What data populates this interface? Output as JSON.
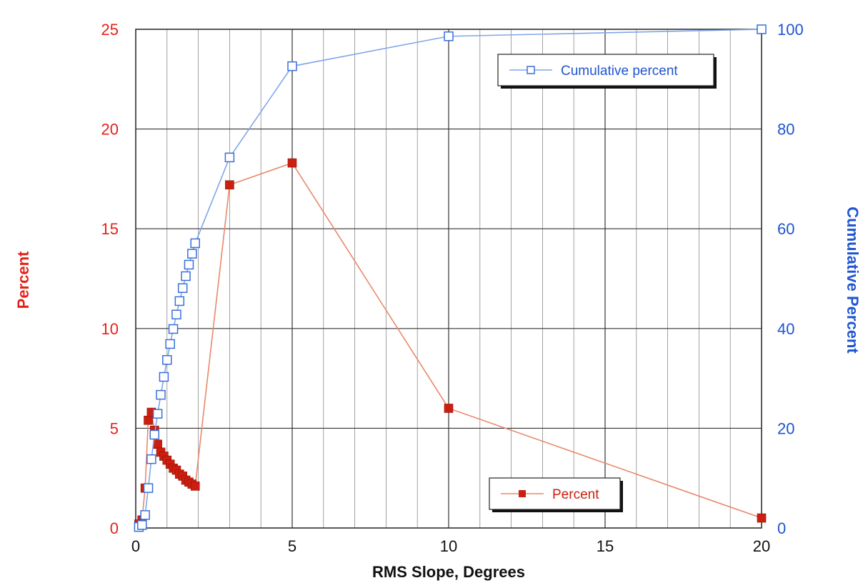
{
  "chart_data": {
    "type": "line",
    "xlabel": "RMS Slope, Degrees",
    "ylabel": "Percent",
    "y2label": "Cumulative Percent",
    "xlim": [
      0,
      20
    ],
    "ylim": [
      0,
      25
    ],
    "y2lim": [
      0,
      100
    ],
    "x_ticks": [
      "0",
      "5",
      "10",
      "15",
      "20"
    ],
    "y_ticks": [
      "0",
      "5",
      "10",
      "15",
      "20",
      "25"
    ],
    "y2_ticks": [
      "0",
      "20",
      "40",
      "60",
      "80",
      "100"
    ],
    "grid": true,
    "minor_x_grid_step": 1,
    "series": [
      {
        "name": "Percent",
        "axis": "left",
        "color": "#cc1f10",
        "line_color": "#e8886a",
        "marker": "filled-square",
        "legend_position": "bottom-right",
        "x": [
          0.1,
          0.2,
          0.3,
          0.4,
          0.5,
          0.6,
          0.7,
          0.8,
          0.9,
          1.0,
          1.1,
          1.2,
          1.3,
          1.4,
          1.5,
          1.6,
          1.7,
          1.8,
          1.9,
          3,
          5,
          10,
          20
        ],
        "y": [
          0.2,
          0.4,
          2.0,
          5.4,
          5.8,
          4.9,
          4.2,
          3.8,
          3.6,
          3.4,
          3.2,
          3.0,
          2.9,
          2.7,
          2.6,
          2.4,
          2.3,
          2.2,
          2.1,
          17.2,
          18.3,
          6.0,
          0.5
        ]
      },
      {
        "name": "Cumulative percent",
        "axis": "right",
        "color": "#3a6fd8",
        "line_color": "#7fa6ea",
        "marker": "open-square",
        "legend_position": "top-right",
        "x": [
          0.1,
          0.2,
          0.3,
          0.4,
          0.5,
          0.6,
          0.7,
          0.8,
          0.9,
          1.0,
          1.1,
          1.2,
          1.3,
          1.4,
          1.5,
          1.6,
          1.7,
          1.8,
          1.9,
          3,
          5,
          10,
          20
        ],
        "y": [
          0.2,
          0.6,
          2.6,
          8,
          13.8,
          18.7,
          22.9,
          26.7,
          30.3,
          33.7,
          36.9,
          39.9,
          42.8,
          45.5,
          48.1,
          50.5,
          52.8,
          55.0,
          57.1,
          74.3,
          92.6,
          98.6,
          100
        ]
      }
    ]
  }
}
